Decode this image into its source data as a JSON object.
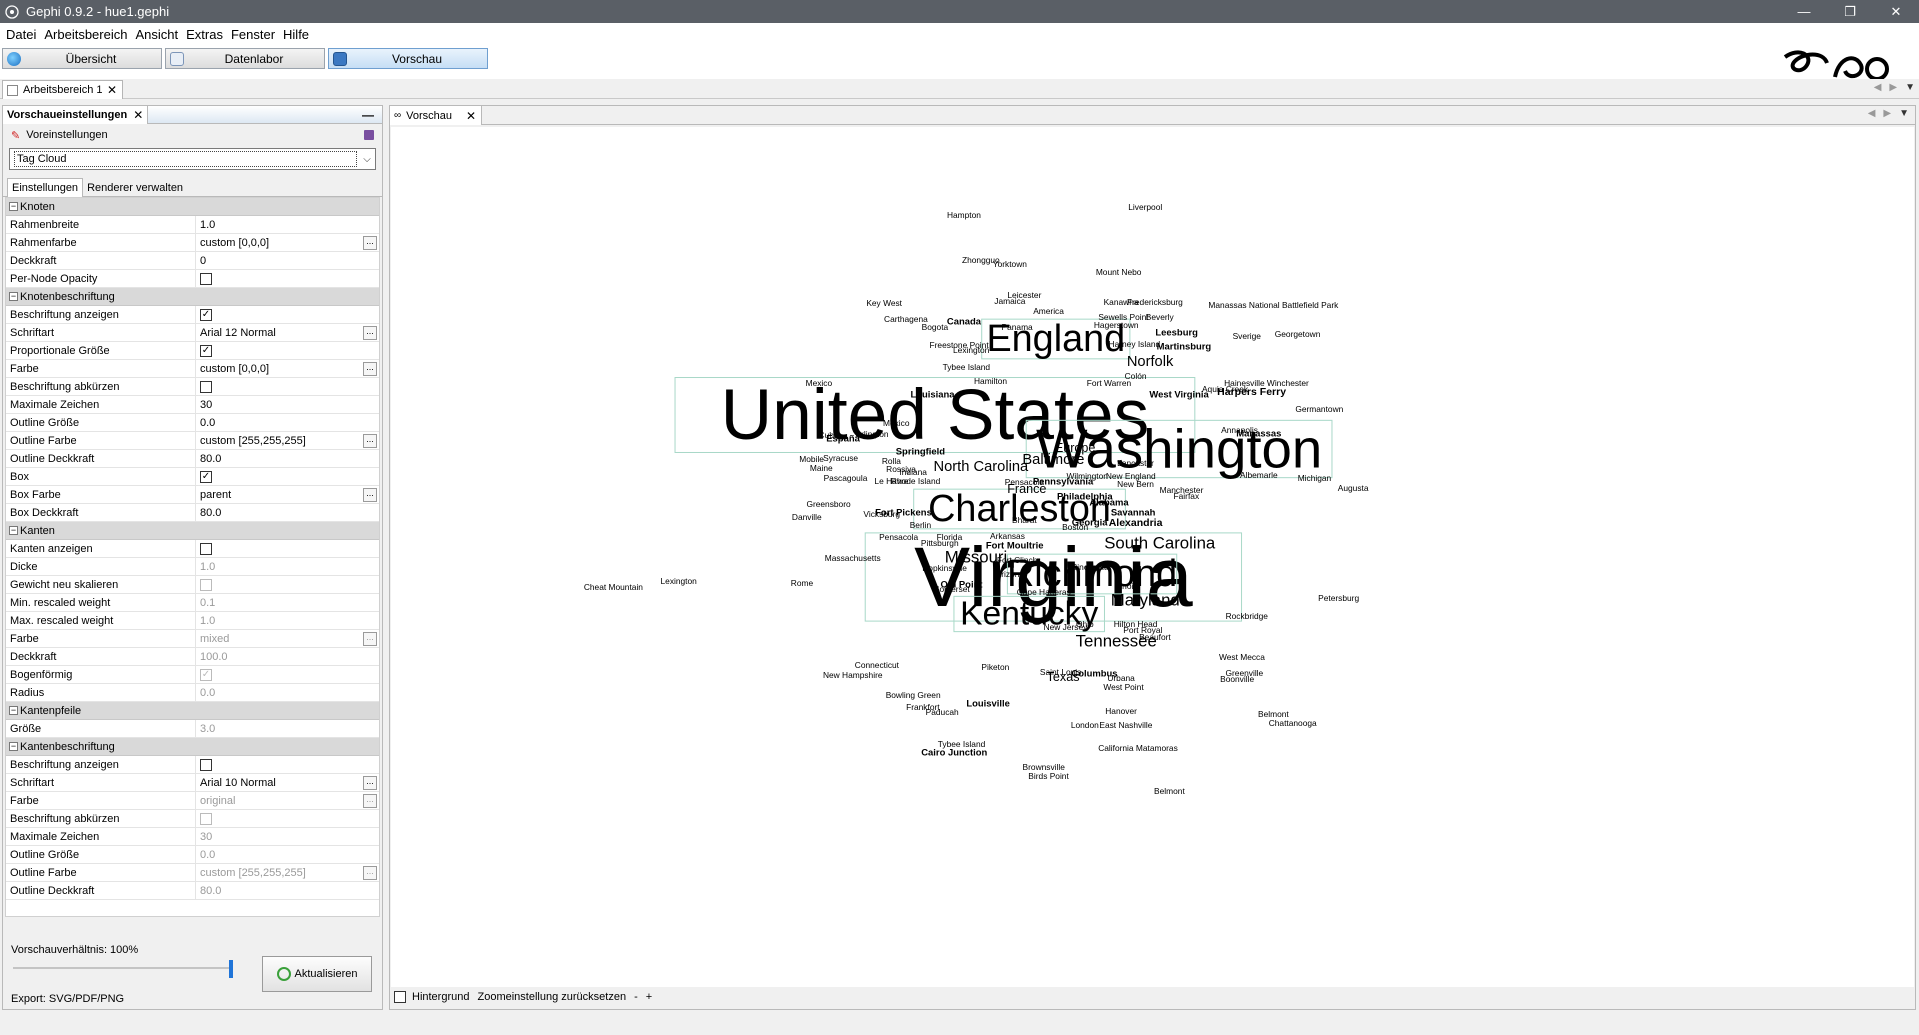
{
  "window": {
    "title": "Gephi 0.9.2 - hue1.gephi",
    "minimize": "—",
    "maximize": "❐",
    "close": "✕"
  },
  "menu": [
    "Datei",
    "Arbeitsbereich",
    "Ansicht",
    "Extras",
    "Fenster",
    "Hilfe"
  ],
  "modes": {
    "overview": "Übersicht",
    "data_lab": "Datenlabor",
    "preview": "Vorschau"
  },
  "workspace_tab": {
    "label": "Arbeitsbereich 1",
    "close": "✕"
  },
  "settings_panel": {
    "title": "Vorschaueinstellungen",
    "close": "✕",
    "minimize": "—",
    "presets_label": "Voreinstellungen",
    "preset_selected": "Tag Cloud",
    "tab_settings": "Einstellungen",
    "tab_renderers": "Renderer verwalten",
    "ratio_label": "Vorschauverhältnis:  100%",
    "ratio_value": 1.0,
    "refresh_label": "Aktualisieren",
    "export_label": "Export:   SVG/PDF/PNG"
  },
  "properties": [
    {
      "type": "cat",
      "name": "Knoten"
    },
    {
      "name": "Rahmenbreite",
      "value": "1.0"
    },
    {
      "name": "Rahmenfarbe",
      "value": "custom [0,0,0]",
      "dots": true
    },
    {
      "name": "Deckkraft",
      "value": "0"
    },
    {
      "name": "Per-Node Opacity",
      "check": false
    },
    {
      "type": "cat",
      "name": "Knotenbeschriftung"
    },
    {
      "name": "Beschriftung anzeigen",
      "check": true
    },
    {
      "name": "Schriftart",
      "value": "Arial 12 Normal",
      "dots": true
    },
    {
      "name": "Proportionale Größe",
      "check": true
    },
    {
      "name": "Farbe",
      "value": "custom [0,0,0]",
      "dots": true
    },
    {
      "name": "Beschriftung abkürzen",
      "check": false
    },
    {
      "name": "Maximale Zeichen",
      "value": "30"
    },
    {
      "name": "Outline Größe",
      "value": "0.0"
    },
    {
      "name": "Outline Farbe",
      "value": "custom [255,255,255]",
      "dots": true
    },
    {
      "name": "Outline Deckkraft",
      "value": "80.0"
    },
    {
      "name": "Box",
      "check": true
    },
    {
      "name": "Box Farbe",
      "value": "parent",
      "dots": true
    },
    {
      "name": "Box Deckkraft",
      "value": "80.0"
    },
    {
      "type": "cat",
      "name": "Kanten"
    },
    {
      "name": "Kanten anzeigen",
      "check": false
    },
    {
      "name": "Dicke",
      "value": "1.0",
      "disabled": true
    },
    {
      "name": "Gewicht neu skalieren",
      "check": false,
      "disabled": true
    },
    {
      "name": "Min. rescaled weight",
      "value": "0.1",
      "disabled": true
    },
    {
      "name": "Max. rescaled weight",
      "value": "1.0",
      "disabled": true
    },
    {
      "name": "Farbe",
      "value": "mixed",
      "dots": true,
      "disabled": true
    },
    {
      "name": "Deckkraft",
      "value": "100.0",
      "disabled": true
    },
    {
      "name": "Bogenförmig",
      "check": true,
      "disabled": true
    },
    {
      "name": "Radius",
      "value": "0.0",
      "disabled": true
    },
    {
      "type": "cat",
      "name": "Kantenpfeile"
    },
    {
      "name": "Größe",
      "value": "3.0",
      "disabled": true
    },
    {
      "type": "cat",
      "name": "Kantenbeschriftung"
    },
    {
      "name": "Beschriftung anzeigen",
      "check": false
    },
    {
      "name": "Schriftart",
      "value": "Arial 10 Normal",
      "dots": true
    },
    {
      "name": "Farbe",
      "value": "original",
      "dots": true,
      "disabled": true
    },
    {
      "name": "Beschriftung abkürzen",
      "check": false,
      "disabled": true
    },
    {
      "name": "Maximale Zeichen",
      "value": "30",
      "disabled": true
    },
    {
      "name": "Outline Größe",
      "value": "0.0",
      "disabled": true
    },
    {
      "name": "Outline Farbe",
      "value": "custom [255,255,255]",
      "dots": true,
      "disabled": true
    },
    {
      "name": "Outline Deckkraft",
      "value": "80.0",
      "disabled": true
    }
  ],
  "preview": {
    "tab_label": "Vorschau",
    "tab_close": "✕",
    "background_label": "Hintergrund",
    "reset_zoom_label": "Zoomeinstellung zurücksetzen",
    "zoom_out": "-",
    "zoom_in": "+"
  },
  "tag_cloud": {
    "box_color": "#a8d8c8",
    "labels": [
      {
        "t": "Virginia",
        "s": 40
      },
      {
        "t": "United States",
        "s": 34
      },
      {
        "t": "Washington",
        "s": 26
      },
      {
        "t": "Charleston",
        "s": 18
      },
      {
        "t": "England",
        "s": 18
      },
      {
        "t": "Richmond",
        "s": 18
      },
      {
        "t": "Kentucky",
        "s": 16
      },
      {
        "t": "Missouri",
        "s": 8
      },
      {
        "t": "North Carolina",
        "s": 7
      },
      {
        "t": "South Carolina",
        "s": 8
      },
      {
        "t": "Maryland",
        "s": 8
      },
      {
        "t": "Tennessee",
        "s": 8
      },
      {
        "t": "Baltimore",
        "s": 7
      },
      {
        "t": "Norfolk",
        "s": 7
      },
      {
        "t": "Texas",
        "s": 6
      },
      {
        "t": "France",
        "s": 6
      },
      {
        "t": "Europe",
        "s": 6
      },
      {
        "t": "Hampton",
        "s": 4
      },
      {
        "t": "Liverpool",
        "s": 4
      },
      {
        "t": "Zhongguo",
        "s": 4
      },
      {
        "t": "Yorktown",
        "s": 4
      },
      {
        "t": "Mount Nebo",
        "s": 4
      },
      {
        "t": "Key West",
        "s": 4
      },
      {
        "t": "Leicester",
        "s": 4
      },
      {
        "t": "Jamaica",
        "s": 4
      },
      {
        "t": "Kanawha",
        "s": 4
      },
      {
        "t": "Fredericksburg",
        "s": 4
      },
      {
        "t": "Manassas National Battlefield Park",
        "s": 4
      },
      {
        "t": "America",
        "s": 4
      },
      {
        "t": "Sewells Point",
        "s": 4
      },
      {
        "t": "Beverly",
        "s": 4
      },
      {
        "t": "Carthagena",
        "s": 4
      },
      {
        "t": "Canada",
        "s": 4.5
      },
      {
        "t": "Bogota",
        "s": 4
      },
      {
        "t": "Panama",
        "s": 4
      },
      {
        "t": "Hagerstown",
        "s": 4
      },
      {
        "t": "Leesburg",
        "s": 4.5
      },
      {
        "t": "Sverige",
        "s": 4
      },
      {
        "t": "Georgetown",
        "s": 4
      },
      {
        "t": "Freestone Point",
        "s": 4
      },
      {
        "t": "Lexington",
        "s": 4
      },
      {
        "t": "Harney Island",
        "s": 4
      },
      {
        "t": "Martinsburg",
        "s": 4.5
      },
      {
        "t": "Tybee Island",
        "s": 4
      },
      {
        "t": "Colón",
        "s": 4
      },
      {
        "t": "Hamilton",
        "s": 4
      },
      {
        "t": "Fort Warren",
        "s": 4
      },
      {
        "t": "Hainesville",
        "s": 4
      },
      {
        "t": "Winchester",
        "s": 4
      },
      {
        "t": "Mexico",
        "s": 4
      },
      {
        "t": "Aquia Creek",
        "s": 4
      },
      {
        "t": "Harpers Ferry",
        "s": 5
      },
      {
        "t": "Louisiana",
        "s": 4.5
      },
      {
        "t": "West Virginia",
        "s": 4.5
      },
      {
        "t": "Germantown",
        "s": 4
      },
      {
        "t": "México",
        "s": 4
      },
      {
        "t": "Annapolis",
        "s": 4
      },
      {
        "t": "Manassas",
        "s": 4.5
      },
      {
        "t": "España",
        "s": 4.5
      },
      {
        "t": "Arlington",
        "s": 4
      },
      {
        "t": "Cuba",
        "s": 4
      },
      {
        "t": "Springfield",
        "s": 4.5
      },
      {
        "t": "Syracuse",
        "s": 4
      },
      {
        "t": "Rolla",
        "s": 4
      },
      {
        "t": "Mobile",
        "s": 4
      },
      {
        "t": "Maine",
        "s": 4
      },
      {
        "t": "Rossiya",
        "s": 4
      },
      {
        "t": "Indiana",
        "s": 4
      },
      {
        "t": "Lancaster",
        "s": 4
      },
      {
        "t": "Albemarle",
        "s": 4
      },
      {
        "t": "Michigan",
        "s": 4
      },
      {
        "t": "Augusta",
        "s": 4
      },
      {
        "t": "Pascagoula",
        "s": 4
      },
      {
        "t": "Le Havre",
        "s": 4
      },
      {
        "t": "Rhode Island",
        "s": 4
      },
      {
        "t": "Pensacola",
        "s": 4
      },
      {
        "t": "Pennsylvania",
        "s": 4.5
      },
      {
        "t": "Wilmington",
        "s": 4
      },
      {
        "t": "New England",
        "s": 4
      },
      {
        "t": "New Bern",
        "s": 4
      },
      {
        "t": "Manchester",
        "s": 4
      },
      {
        "t": "Fairfax",
        "s": 4
      },
      {
        "t": "Philadelphia",
        "s": 4.5
      },
      {
        "t": "Greensboro",
        "s": 4
      },
      {
        "t": "Alabama",
        "s": 4.5
      },
      {
        "t": "Danville",
        "s": 4
      },
      {
        "t": "Vicksburg",
        "s": 4
      },
      {
        "t": "Fort Pickens",
        "s": 4.5
      },
      {
        "t": "Savannah",
        "s": 4.5
      },
      {
        "t": "Bhārat",
        "s": 4
      },
      {
        "t": "Alexandria",
        "s": 5
      },
      {
        "t": "Georgia",
        "s": 4.5
      },
      {
        "t": "Boston",
        "s": 4
      },
      {
        "t": "Berlin",
        "s": 4
      },
      {
        "t": "Pensacola",
        "s": 4
      },
      {
        "t": "Florida",
        "s": 4
      },
      {
        "t": "Pittsburgh",
        "s": 4
      },
      {
        "t": "Arkansas",
        "s": 4
      },
      {
        "t": "Fort Moultrie",
        "s": 4.5
      },
      {
        "t": "Massachusetts",
        "s": 4
      },
      {
        "t": "Hopkinsville",
        "s": 4
      },
      {
        "t": "Fort Clinch",
        "s": 4
      },
      {
        "t": "Arizona",
        "s": 4
      },
      {
        "t": "Cincinnati",
        "s": 4
      },
      {
        "t": "Cheat Mountain",
        "s": 4
      },
      {
        "t": "Lexington",
        "s": 4
      },
      {
        "t": "Rome",
        "s": 4
      },
      {
        "t": "Old Point",
        "s": 4.5
      },
      {
        "t": "Somerset",
        "s": 4
      },
      {
        "t": "Cape Hatteras",
        "s": 4
      },
      {
        "t": "Illinois",
        "s": 4
      },
      {
        "t": "Petersburg",
        "s": 4
      },
      {
        "t": "Rockbridge",
        "s": 4
      },
      {
        "t": "Hilton Head",
        "s": 4
      },
      {
        "t": "Ohio",
        "s": 4
      },
      {
        "t": "New Jersey",
        "s": 4
      },
      {
        "t": "Port Royal",
        "s": 4
      },
      {
        "t": "Beaufort",
        "s": 4
      },
      {
        "t": "Connecticut",
        "s": 4
      },
      {
        "t": "New Hampshire",
        "s": 4
      },
      {
        "t": "Piketon",
        "s": 4
      },
      {
        "t": "Saint Louis",
        "s": 4
      },
      {
        "t": "Columbus",
        "s": 4.5
      },
      {
        "t": "Urbana",
        "s": 4
      },
      {
        "t": "West Point",
        "s": 4
      },
      {
        "t": "West Mecca",
        "s": 4
      },
      {
        "t": "Greenville",
        "s": 4
      },
      {
        "t": "Boonville",
        "s": 4
      },
      {
        "t": "Bowling Green",
        "s": 4
      },
      {
        "t": "Frankfort",
        "s": 4
      },
      {
        "t": "Louisville",
        "s": 4.5
      },
      {
        "t": "Paducah",
        "s": 4
      },
      {
        "t": "Hanover",
        "s": 4
      },
      {
        "t": "Belmont",
        "s": 4
      },
      {
        "t": "Chattanooga",
        "s": 4
      },
      {
        "t": "London",
        "s": 4
      },
      {
        "t": "East Nashville",
        "s": 4
      },
      {
        "t": "Tybee Island",
        "s": 4
      },
      {
        "t": "Cairo Junction",
        "s": 4.5
      },
      {
        "t": "California Matamoras",
        "s": 4
      },
      {
        "t": "Brownsville",
        "s": 4
      },
      {
        "t": "Birds Point",
        "s": 4
      },
      {
        "t": "Belmont",
        "s": 4
      }
    ]
  }
}
